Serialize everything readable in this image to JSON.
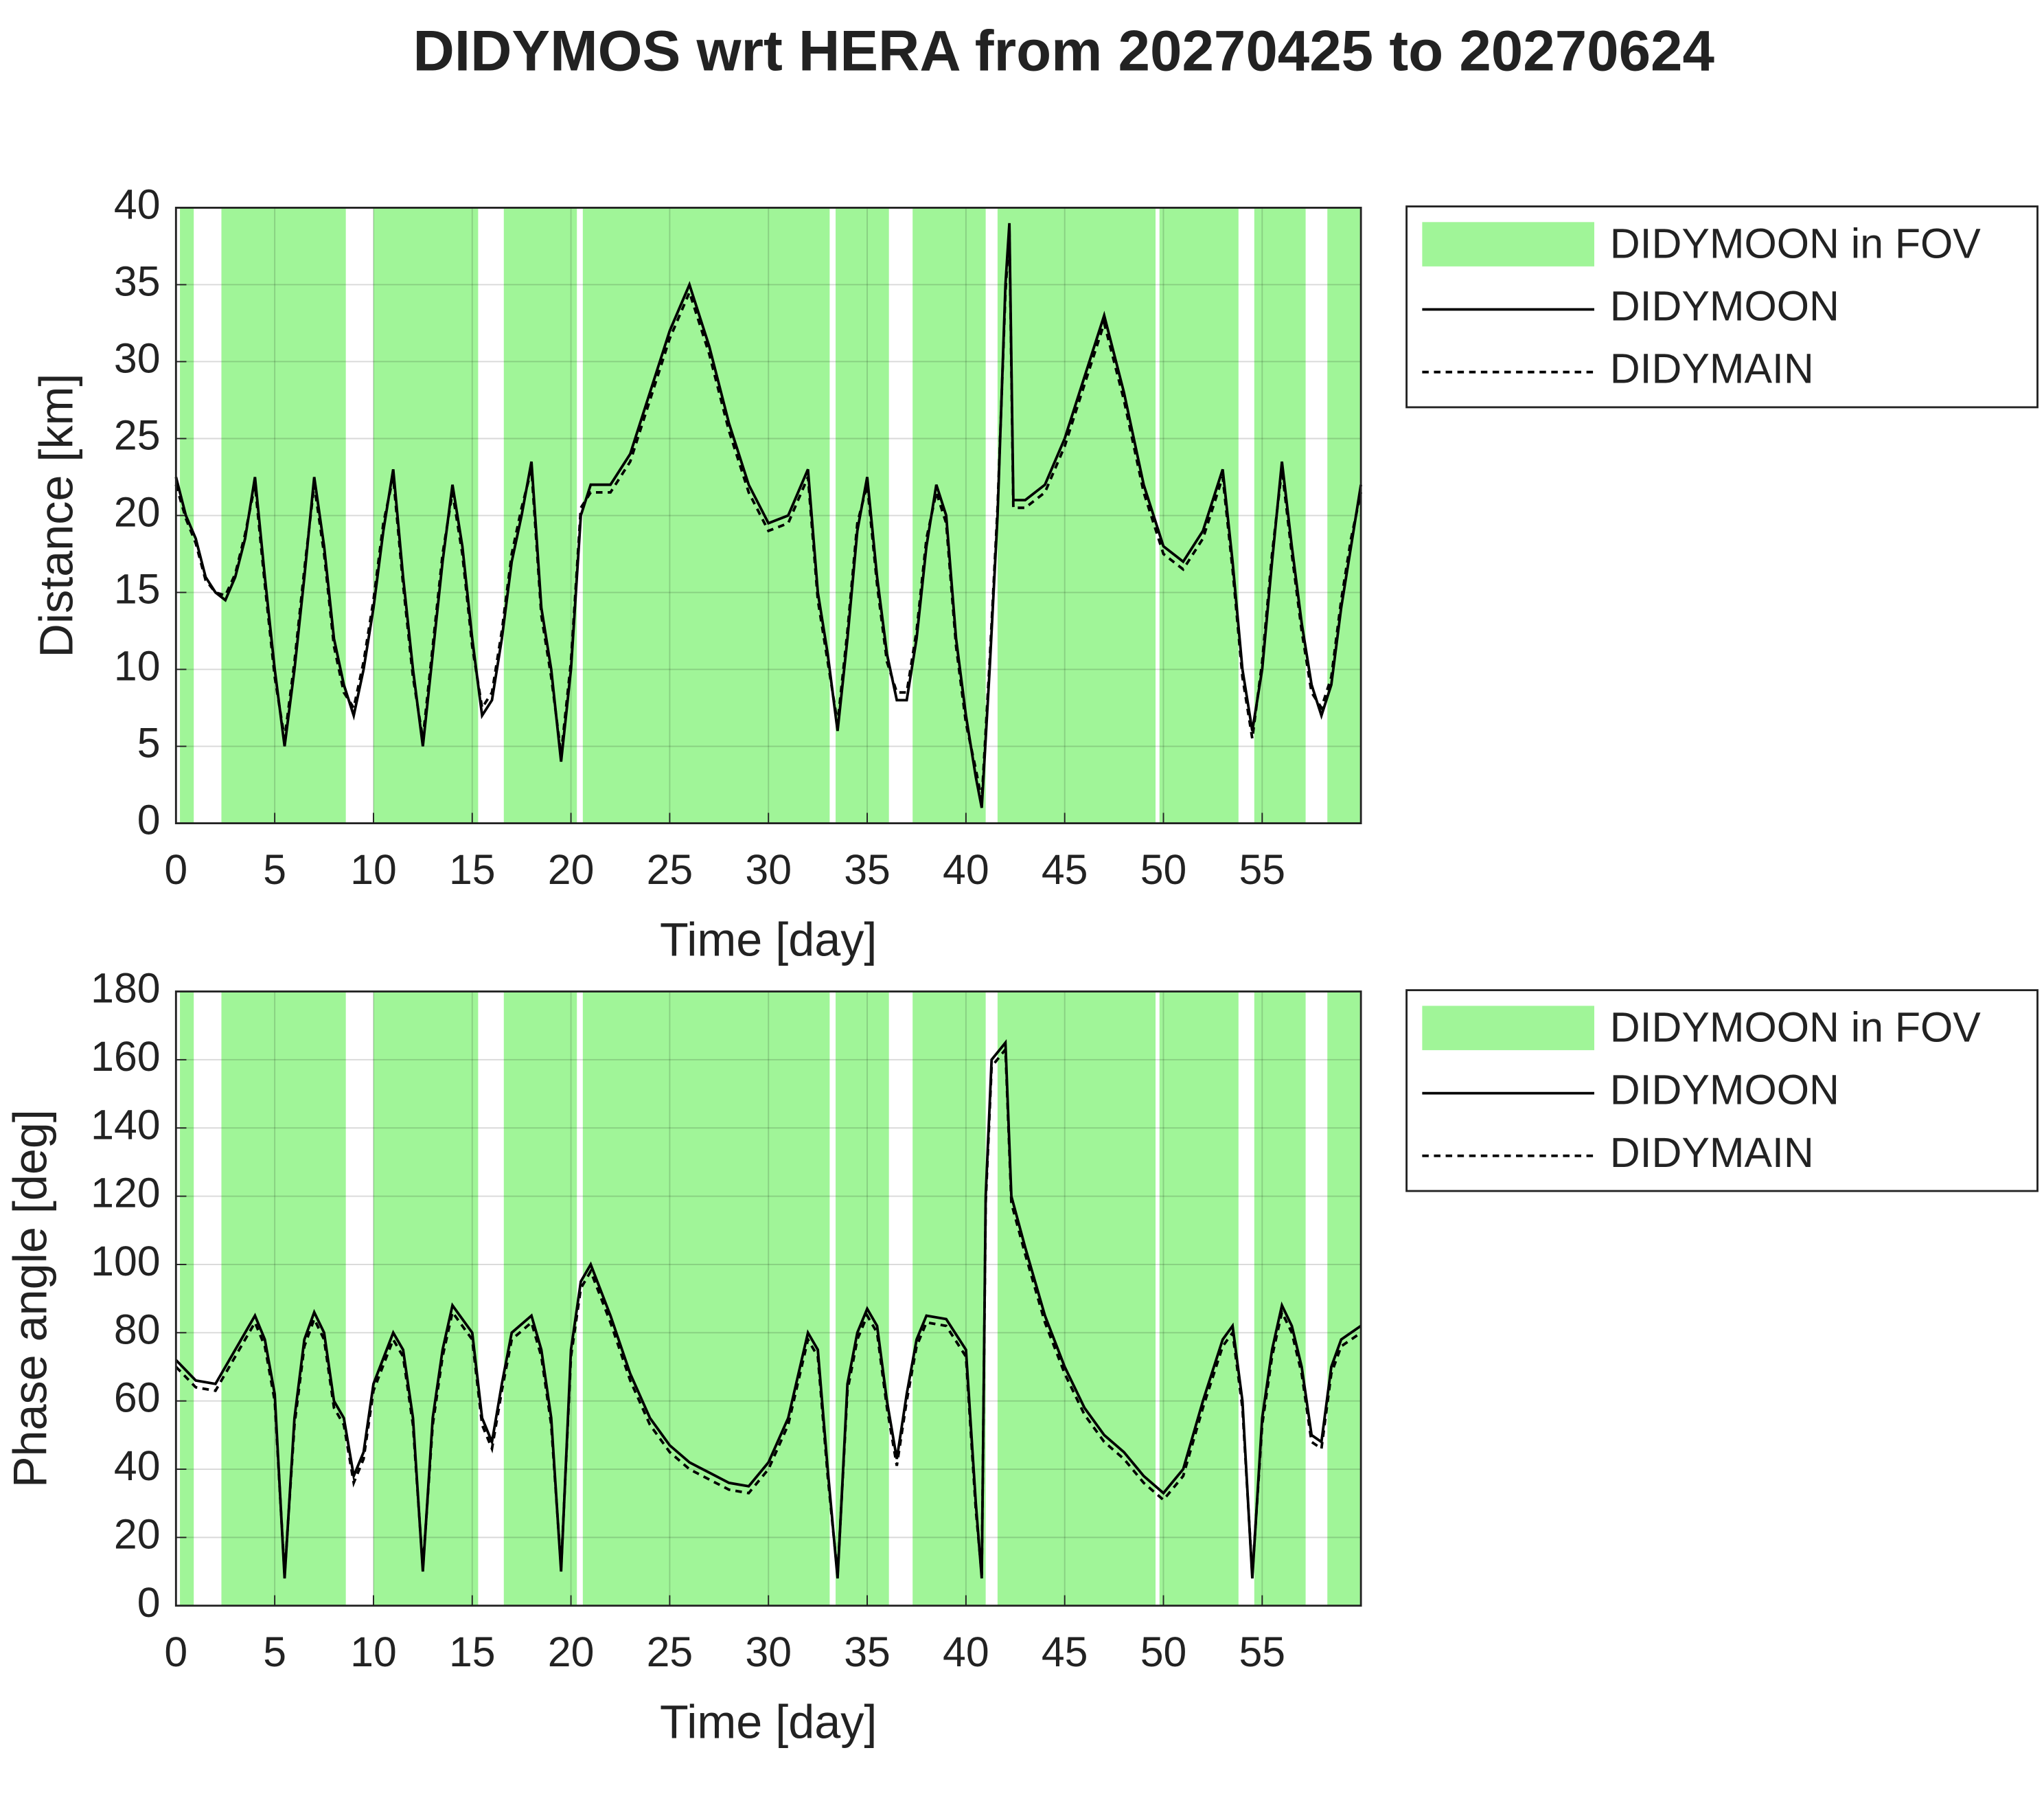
{
  "title": "DIDYMOS wrt HERA from 20270425 to 20270624",
  "chart_data": [
    {
      "type": "line",
      "xlabel": "Time [day]",
      "ylabel": "Distance [km]",
      "xlim": [
        0,
        60
      ],
      "ylim": [
        0,
        40
      ],
      "xticks": [
        0,
        5,
        10,
        15,
        20,
        25,
        30,
        35,
        40,
        45,
        50,
        55
      ],
      "yticks": [
        0,
        5,
        10,
        15,
        20,
        25,
        30,
        35,
        40
      ],
      "grid": true,
      "legend": "outside-right",
      "fov": {
        "name": "DIDYMOON in FOV",
        "color": "#a0f598",
        "intervals": [
          [
            0.2,
            0.9
          ],
          [
            2.3,
            8.6
          ],
          [
            10,
            15.3
          ],
          [
            16.6,
            20.3
          ],
          [
            20.6,
            33.1
          ],
          [
            33.4,
            36.1
          ],
          [
            37.3,
            41
          ],
          [
            41.6,
            49.6
          ],
          [
            49.8,
            53.8
          ],
          [
            54.6,
            57.2
          ],
          [
            58.3,
            60
          ]
        ]
      },
      "x": [
        0,
        0.5,
        1,
        1.5,
        2,
        2.5,
        3,
        3.5,
        4,
        4.5,
        5,
        5.5,
        6,
        6.5,
        7,
        7.5,
        8,
        8.5,
        9,
        9.5,
        10,
        10.5,
        11,
        11.5,
        12,
        12.5,
        13,
        13.5,
        14,
        14.5,
        15,
        15.5,
        16,
        16.5,
        17,
        17.5,
        18,
        18.5,
        19,
        19.5,
        20,
        20.5,
        21,
        22,
        23,
        24,
        25,
        26,
        27,
        28,
        29,
        30,
        31,
        32,
        32.5,
        33,
        33.5,
        34,
        34.5,
        35,
        35.5,
        36,
        36.5,
        37,
        37.5,
        38,
        38.5,
        39,
        39.5,
        40,
        40.5,
        40.8,
        41.2,
        41.6,
        42,
        42.2,
        42.4,
        43,
        44,
        45,
        46,
        47,
        48,
        49,
        50,
        51,
        52,
        53,
        53.5,
        54,
        54.5,
        55,
        55.5,
        56,
        56.5,
        57,
        57.5,
        58,
        58.5,
        59,
        59.5,
        60
      ],
      "series": [
        {
          "name": "DIDYMOON",
          "color": "#000000",
          "dash": false,
          "values": [
            22.5,
            20,
            18.5,
            16,
            15,
            14.5,
            16,
            18.5,
            22.5,
            16,
            10,
            5,
            10,
            16,
            22.5,
            18,
            12,
            9,
            7,
            10,
            14,
            19,
            23,
            16,
            10,
            5,
            11,
            17,
            22,
            18,
            12,
            7,
            8,
            12,
            17,
            20,
            23.5,
            14,
            10,
            4,
            10,
            20,
            22,
            22,
            24,
            28,
            32,
            35,
            31,
            26,
            22,
            19.5,
            20,
            23,
            15,
            11,
            6,
            12,
            19,
            22.5,
            16,
            11,
            8,
            8,
            12,
            18,
            22,
            20,
            12,
            7,
            3,
            1,
            10,
            20,
            35,
            39,
            21,
            21,
            22,
            25,
            29,
            33,
            28,
            22,
            18,
            17,
            19,
            23,
            17,
            10,
            6,
            10,
            17,
            23.5,
            18,
            13,
            9,
            7,
            9,
            14,
            18,
            22
          ]
        },
        {
          "name": "DIDYMAIN",
          "color": "#000000",
          "dash": true,
          "values": [
            22,
            19.8,
            18.2,
            15.8,
            15,
            14.8,
            16.2,
            18.8,
            22,
            15.5,
            9.5,
            5.5,
            10.5,
            16.5,
            22,
            17.5,
            11.5,
            8.5,
            7.5,
            10.5,
            14.5,
            19.5,
            22.5,
            15.5,
            9.5,
            5.5,
            11.5,
            17.5,
            21.5,
            17.5,
            11.5,
            7.5,
            8.5,
            12.5,
            17.5,
            20.5,
            23,
            13.5,
            9.5,
            4.5,
            10.5,
            20.5,
            21.5,
            21.5,
            23.5,
            27.5,
            31.5,
            34.5,
            30.5,
            25.5,
            21.5,
            19,
            19.5,
            22.5,
            14.5,
            10.5,
            6.5,
            12.5,
            19.5,
            22,
            15.5,
            10.5,
            8.5,
            8.5,
            12.5,
            18.5,
            21.5,
            19.5,
            11.5,
            6.5,
            3.5,
            1.5,
            10.5,
            20.5,
            34.5,
            38.5,
            20.5,
            20.5,
            21.5,
            24.5,
            28.5,
            32.5,
            27.5,
            21.5,
            17.5,
            16.5,
            18.5,
            22.5,
            16.5,
            9.5,
            5.5,
            10.5,
            17.5,
            23,
            17.5,
            12.5,
            8.5,
            7.5,
            9.5,
            14.5,
            18.5,
            21.5
          ]
        }
      ]
    },
    {
      "type": "line",
      "xlabel": "Time [day]",
      "ylabel": "Phase angle [deg]",
      "xlim": [
        0,
        60
      ],
      "ylim": [
        0,
        180
      ],
      "xticks": [
        0,
        5,
        10,
        15,
        20,
        25,
        30,
        35,
        40,
        45,
        50,
        55
      ],
      "yticks": [
        0,
        20,
        40,
        60,
        80,
        100,
        120,
        140,
        160,
        180
      ],
      "grid": true,
      "legend": "outside-right",
      "fov": {
        "name": "DIDYMOON in FOV",
        "color": "#a0f598",
        "intervals": [
          [
            0.2,
            0.9
          ],
          [
            2.3,
            8.6
          ],
          [
            10,
            15.3
          ],
          [
            16.6,
            20.3
          ],
          [
            20.6,
            33.1
          ],
          [
            33.4,
            36.1
          ],
          [
            37.3,
            41
          ],
          [
            41.6,
            49.6
          ],
          [
            49.8,
            53.8
          ],
          [
            54.6,
            57.2
          ],
          [
            58.3,
            60
          ]
        ]
      },
      "x": [
        0,
        1,
        2,
        3,
        4,
        4.5,
        5,
        5.5,
        6,
        6.5,
        7,
        7.5,
        8,
        8.5,
        9,
        9.5,
        10,
        11,
        11.5,
        12,
        12.5,
        13,
        13.5,
        14,
        15,
        15.5,
        16,
        16.5,
        17,
        18,
        18.5,
        19,
        19.5,
        20,
        20.5,
        21,
        22,
        23,
        24,
        25,
        26,
        27,
        28,
        29,
        30,
        31,
        32,
        32.5,
        33,
        33.5,
        34,
        34.5,
        35,
        35.5,
        36,
        36.5,
        37,
        37.5,
        38,
        39,
        40,
        40.5,
        40.8,
        41,
        41.3,
        42,
        42.3,
        43,
        44,
        45,
        46,
        47,
        48,
        49,
        50,
        51,
        52,
        53,
        53.5,
        54,
        54.5,
        55,
        55.5,
        56,
        56.5,
        57,
        57.5,
        58,
        58.5,
        59,
        60
      ],
      "series": [
        {
          "name": "DIDYMOON",
          "color": "#000000",
          "dash": false,
          "values": [
            72,
            66,
            65,
            75,
            85,
            78,
            62,
            8,
            55,
            78,
            86,
            80,
            60,
            55,
            38,
            45,
            65,
            80,
            75,
            55,
            10,
            55,
            75,
            88,
            80,
            55,
            48,
            65,
            80,
            85,
            75,
            55,
            10,
            75,
            95,
            100,
            85,
            68,
            55,
            47,
            42,
            39,
            36,
            35,
            42,
            55,
            80,
            75,
            40,
            8,
            65,
            80,
            87,
            82,
            60,
            43,
            62,
            78,
            85,
            84,
            75,
            30,
            8,
            120,
            160,
            165,
            120,
            105,
            85,
            70,
            58,
            50,
            45,
            38,
            33,
            40,
            60,
            78,
            82,
            60,
            8,
            55,
            75,
            88,
            82,
            70,
            50,
            48,
            70,
            78,
            82
          ]
        },
        {
          "name": "DIDYMAIN",
          "color": "#000000",
          "dash": true,
          "values": [
            70,
            64,
            63,
            73,
            83,
            76,
            60,
            9,
            53,
            76,
            84,
            78,
            58,
            53,
            36,
            43,
            63,
            78,
            73,
            53,
            11,
            53,
            73,
            86,
            78,
            53,
            46,
            63,
            78,
            83,
            73,
            53,
            11,
            73,
            93,
            98,
            83,
            66,
            53,
            45,
            40,
            37,
            34,
            33,
            40,
            53,
            78,
            73,
            38,
            9,
            63,
            78,
            85,
            80,
            58,
            41,
            60,
            76,
            83,
            82,
            73,
            28,
            9,
            118,
            158,
            163,
            118,
            103,
            83,
            68,
            56,
            48,
            43,
            36,
            31,
            38,
            58,
            76,
            80,
            58,
            9,
            53,
            73,
            86,
            80,
            68,
            48,
            46,
            68,
            76,
            80
          ]
        }
      ]
    }
  ]
}
